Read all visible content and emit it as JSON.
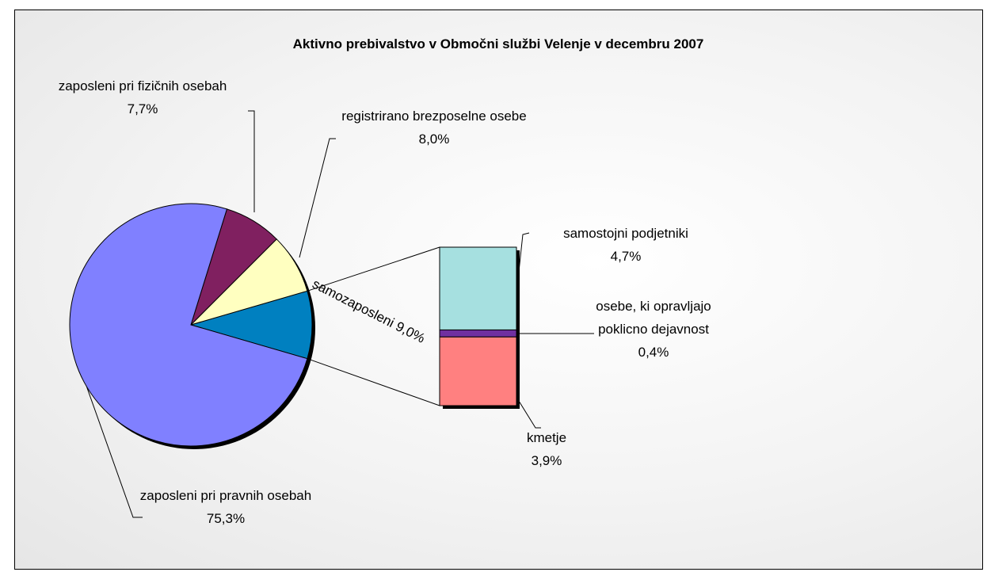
{
  "chart_data": {
    "type": "bar-of-pie",
    "title": "Aktivno prebivalstvo v Območni službi Velenje v decembru 2007",
    "categories": [
      "samozaposleni",
      "registrirano brezposelne osebe",
      "zaposleni pri fizičnih osebah",
      "zaposleni pri pravnih osebah"
    ],
    "values": [
      9.0,
      8.0,
      7.7,
      75.3
    ],
    "value_labels": [
      "9,0%",
      "8,0%",
      "7,7%",
      "75,3%"
    ],
    "colors": [
      "#0080c0",
      "#ffffc0",
      "#802060",
      "#8080ff"
    ],
    "breakdown": {
      "categories": [
        "samostojni podjetniki",
        "osebe, ki opravljajo poklicno dejavnost",
        "kmetje"
      ],
      "values": [
        4.7,
        0.4,
        3.9
      ],
      "value_labels": [
        "4,7%",
        "0,4%",
        "3,9%"
      ],
      "colors": [
        "#a6e0e0",
        "#7030a0",
        "#ff8080"
      ]
    }
  }
}
